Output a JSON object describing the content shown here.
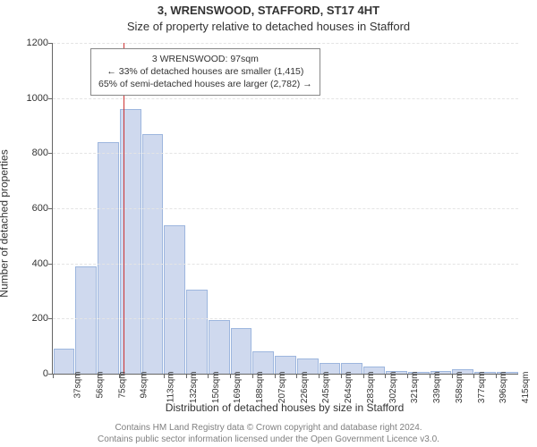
{
  "title_line1": "3, WRENSWOOD, STAFFORD, ST17 4HT",
  "title_line2": "Size of property relative to detached houses in Stafford",
  "ylabel": "Number of detached properties",
  "xlabel": "Distribution of detached houses by size in Stafford",
  "chart": {
    "type": "histogram",
    "ylim": [
      0,
      1200
    ],
    "ytick_step": 200,
    "yticks": [
      0,
      200,
      400,
      600,
      800,
      1000,
      1200
    ],
    "grid_color": "#e4e4e4",
    "axis_color": "#666666",
    "bar_fill": "#cfd9ee",
    "bar_border": "#9db6de",
    "background_color": "#ffffff",
    "marker_color": "#cc3333",
    "marker_value_sqm": 97,
    "x_start": 37,
    "x_step": 18.9,
    "x_unit": "sqm",
    "categories": [
      "37sqm",
      "56sqm",
      "75sqm",
      "94sqm",
      "113sqm",
      "132sqm",
      "150sqm",
      "169sqm",
      "188sqm",
      "207sqm",
      "226sqm",
      "245sqm",
      "264sqm",
      "283sqm",
      "302sqm",
      "321sqm",
      "339sqm",
      "358sqm",
      "377sqm",
      "396sqm",
      "415sqm"
    ],
    "values": [
      90,
      390,
      840,
      960,
      870,
      540,
      305,
      195,
      165,
      80,
      65,
      55,
      40,
      40,
      25,
      10,
      8,
      10,
      15,
      8,
      5
    ],
    "label_fontsize": 12,
    "tick_fontsize": 11,
    "xtick_fontsize": 10
  },
  "info_box": {
    "line1": "3 WRENSWOOD: 97sqm",
    "line2": "← 33% of detached houses are smaller (1,415)",
    "line3": "65% of semi-detached houses are larger (2,782) →",
    "border_color": "#888888",
    "background": "#ffffff",
    "fontsize": 10.5
  },
  "footer": {
    "line1": "Contains HM Land Registry data © Crown copyright and database right 2024.",
    "line2": "Contains public sector information licensed under the Open Government Licence v3.0.",
    "color": "#808080",
    "fontsize": 10
  }
}
